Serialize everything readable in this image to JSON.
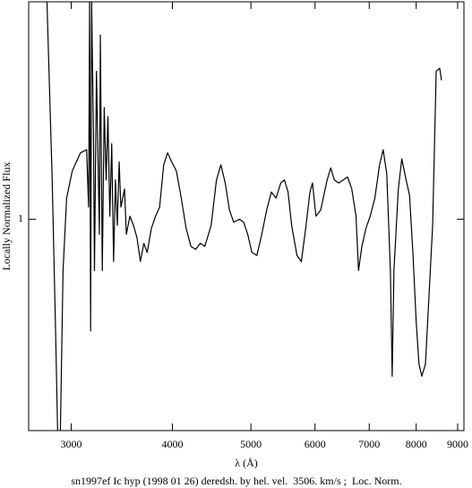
{
  "chart_data": {
    "type": "line",
    "title": "sn1997ef Ic hyp (1998 01 26) deredsh. by hel. vel.  3506. km/s ;  Loc. Norm.",
    "x_label": "λ (Å)",
    "y_label": "Locally Normalized Flux",
    "x_scale": "log",
    "color": "#000000",
    "x": [
      2800,
      2842,
      2871,
      2886,
      2898,
      2909,
      2931,
      2961,
      3009,
      3080,
      3134,
      3152,
      3161,
      3170,
      3179,
      3196,
      3205,
      3223,
      3241,
      3250,
      3259,
      3277,
      3295,
      3313,
      3330,
      3348,
      3366,
      3384,
      3402,
      3420,
      3438,
      3455,
      3491,
      3509,
      3545,
      3580,
      3616,
      3652,
      3688,
      3723,
      3768,
      3813,
      3857,
      3902,
      3946,
      3991,
      4045,
      4102,
      4159,
      4216,
      4273,
      4330,
      4386,
      4466,
      4534,
      4591,
      4648,
      4705,
      4761,
      4841,
      4898,
      4955,
      5014,
      5086,
      5157,
      5229,
      5300,
      5371,
      5443,
      5500,
      5557,
      5614,
      5700,
      5771,
      5843,
      5914,
      5957,
      6016,
      6097,
      6210,
      6274,
      6339,
      6419,
      6500,
      6581,
      6661,
      6742,
      6790,
      6855,
      6935,
      7019,
      7113,
      7208,
      7283,
      7358,
      7434,
      7472,
      7509,
      7604,
      7679,
      7774,
      7849,
      7925,
      8000,
      8064,
      8128,
      8213,
      8298,
      8383,
      8468,
      8553,
      8596
    ],
    "values": [
      1.72,
      1.13,
      0.6,
      0.3,
      null,
      0.3,
      0.83,
      1.07,
      1.16,
      1.22,
      1.23,
      1.04,
      1.72,
      0.63,
      1.72,
      1.28,
      0.83,
      1.49,
      1.13,
      0.95,
      1.61,
      0.83,
      1.37,
      1.13,
      1.34,
      1.01,
      1.25,
      0.86,
      1.13,
      0.98,
      1.19,
      1.04,
      1.1,
      0.95,
      1.01,
      0.98,
      0.94,
      0.86,
      0.92,
      0.89,
      0.97,
      1.01,
      1.04,
      1.18,
      1.22,
      1.19,
      1.16,
      1.07,
      0.97,
      0.91,
      0.9,
      0.92,
      0.91,
      0.98,
      1.13,
      1.18,
      1.12,
      1.03,
      0.99,
      1.0,
      0.99,
      0.95,
      0.89,
      0.88,
      0.95,
      1.03,
      1.09,
      1.07,
      1.12,
      1.13,
      1.09,
      0.98,
      0.88,
      0.86,
      0.97,
      1.09,
      1.12,
      1.01,
      1.03,
      1.13,
      1.17,
      1.13,
      1.12,
      1.13,
      1.14,
      1.1,
      1.01,
      0.83,
      0.91,
      0.97,
      1.01,
      1.07,
      1.18,
      1.23,
      1.15,
      0.83,
      0.48,
      0.83,
      1.1,
      1.2,
      1.13,
      1.08,
      0.89,
      0.66,
      0.52,
      0.48,
      0.52,
      0.75,
      0.98,
      1.49,
      1.5,
      1.46
    ],
    "xlim": [
      2658,
      9163
    ],
    "xticks": [
      3000,
      4000,
      5000,
      6000,
      7000,
      8000,
      9000
    ],
    "ylim": [
      0.3,
      1.72
    ],
    "yticks": [
      1
    ]
  }
}
